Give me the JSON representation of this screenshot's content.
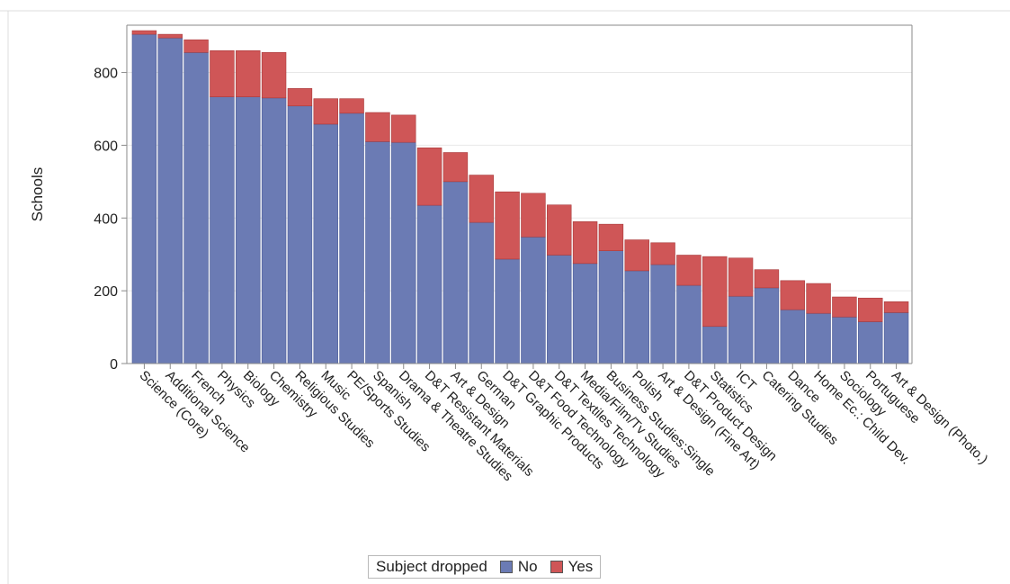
{
  "colors": {
    "no": "#6b7bb4",
    "yes": "#cf5657",
    "frame_line": "#dcdcdc",
    "axis": "#8a8a8a",
    "grid": "#e8e8e8"
  },
  "legend": {
    "title": "Subject dropped",
    "no_label": "No",
    "yes_label": "Yes"
  },
  "chart_data": {
    "type": "bar",
    "stacked": true,
    "title": "",
    "xlabel": "",
    "ylabel": "Schools",
    "ylim": [
      0,
      930
    ],
    "yticks": [
      "0",
      "200",
      "400",
      "600",
      "800"
    ],
    "grid": true,
    "legend_position": "bottom",
    "categories": [
      "Science (Core)",
      "Additional Science",
      "French",
      "Physics",
      "Biology",
      "Chemistry",
      "Religious Studies",
      "Music",
      "PE/Sports Studies",
      "Spanish",
      "Drama & Theatre Studies",
      "D&T Resistant Materials",
      "Art & Design",
      "German",
      "D&T Graphic Products",
      "D&T Food Technology",
      "D&T Textiles Technology",
      "Media/Film/Tv Studies",
      "Business Studies:Single",
      "Polish",
      "Art & Design (Fine Art)",
      "D&T Product Design",
      "Statistics",
      "ICT",
      "Catering Studies",
      "Dance",
      "Home Ec.: Child Dev.",
      "Sociology",
      "Portuguese",
      "Art & Design (Photo.)"
    ],
    "series": [
      {
        "name": "No",
        "values": [
          905,
          895,
          855,
          733,
          733,
          730,
          708,
          658,
          688,
          610,
          608,
          435,
          500,
          388,
          287,
          348,
          298,
          275,
          310,
          255,
          272,
          215,
          102,
          185,
          208,
          148,
          138,
          128,
          115,
          140
        ]
      },
      {
        "name": "Yes",
        "values": [
          10,
          10,
          35,
          127,
          127,
          125,
          48,
          70,
          40,
          80,
          75,
          158,
          80,
          130,
          185,
          120,
          138,
          115,
          73,
          85,
          60,
          83,
          192,
          105,
          50,
          80,
          82,
          55,
          65,
          30
        ]
      }
    ]
  }
}
